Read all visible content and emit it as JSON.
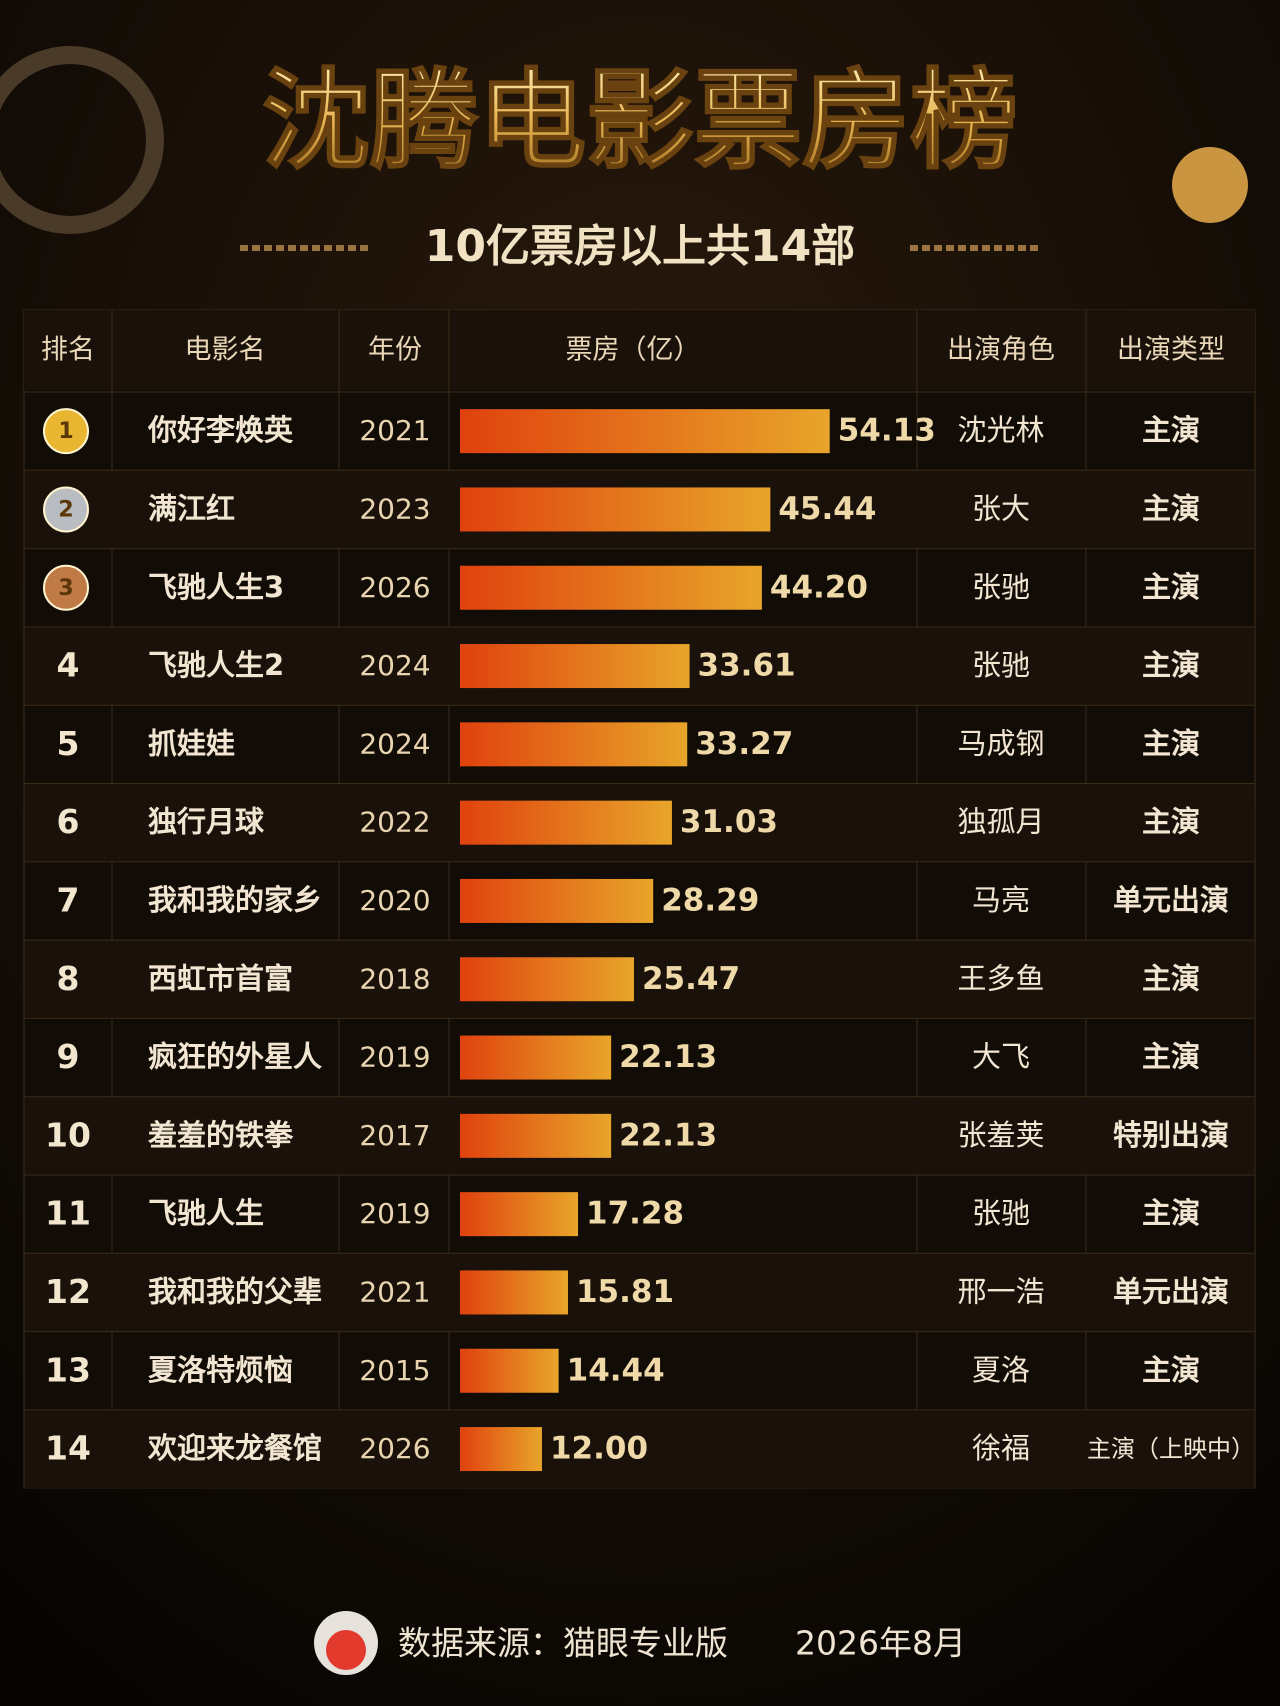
{
  "chart_data": {
    "type": "bar",
    "title": "沈腾电影票房榜",
    "subtitle": "10亿票房以上共14部",
    "headers": [
      "排名",
      "电影名",
      "年份",
      "票房（亿）",
      "出演角色",
      "出演类型"
    ],
    "ranks": [
      1,
      2,
      3,
      4,
      5,
      6,
      7,
      8,
      9,
      10,
      11,
      12,
      13,
      14
    ],
    "categories": [
      "你好李焕英",
      "满江红",
      "飞驰人生3",
      "飞驰人生2",
      "抓娃娃",
      "独行月球",
      "我和我的家乡",
      "西虹市首富",
      "疯狂的外星人",
      "羞羞的铁拳",
      "飞驰人生",
      "我和我的父辈",
      "夏洛特烦恼",
      "欢迎来龙餐馆"
    ],
    "years": [
      "2021",
      "2023",
      "2026",
      "2024",
      "2024",
      "2022",
      "2020",
      "2018",
      "2019",
      "2017",
      "2019",
      "2021",
      "2015",
      "2026"
    ],
    "values": [
      54.13,
      45.44,
      44.2,
      33.61,
      33.27,
      31.03,
      28.29,
      25.47,
      22.13,
      22.13,
      17.28,
      15.81,
      14.44,
      12.0
    ],
    "value_labels": [
      "54.13",
      "45.44",
      "44.20",
      "33.61",
      "33.27",
      "31.03",
      "28.29",
      "25.47",
      "22.13",
      "22.13",
      "17.28",
      "15.81",
      "14.44",
      "12.00"
    ],
    "roles": [
      "沈光林",
      "张大",
      "张驰",
      "张驰",
      "马成钢",
      "独孤月",
      "马亮",
      "王多鱼",
      "大飞",
      "张羞荚",
      "张驰",
      "邢一浩",
      "夏洛",
      "徐福"
    ],
    "role_types": [
      "主演",
      "主演",
      "主演",
      "主演",
      "主演",
      "主演",
      "单元出演",
      "主演",
      "主演",
      "特别出演",
      "主演",
      "单元出演",
      "主演",
      "主演（上映中）"
    ],
    "source": "数据来源：猫眼专业版",
    "date": "2026年8月"
  }
}
